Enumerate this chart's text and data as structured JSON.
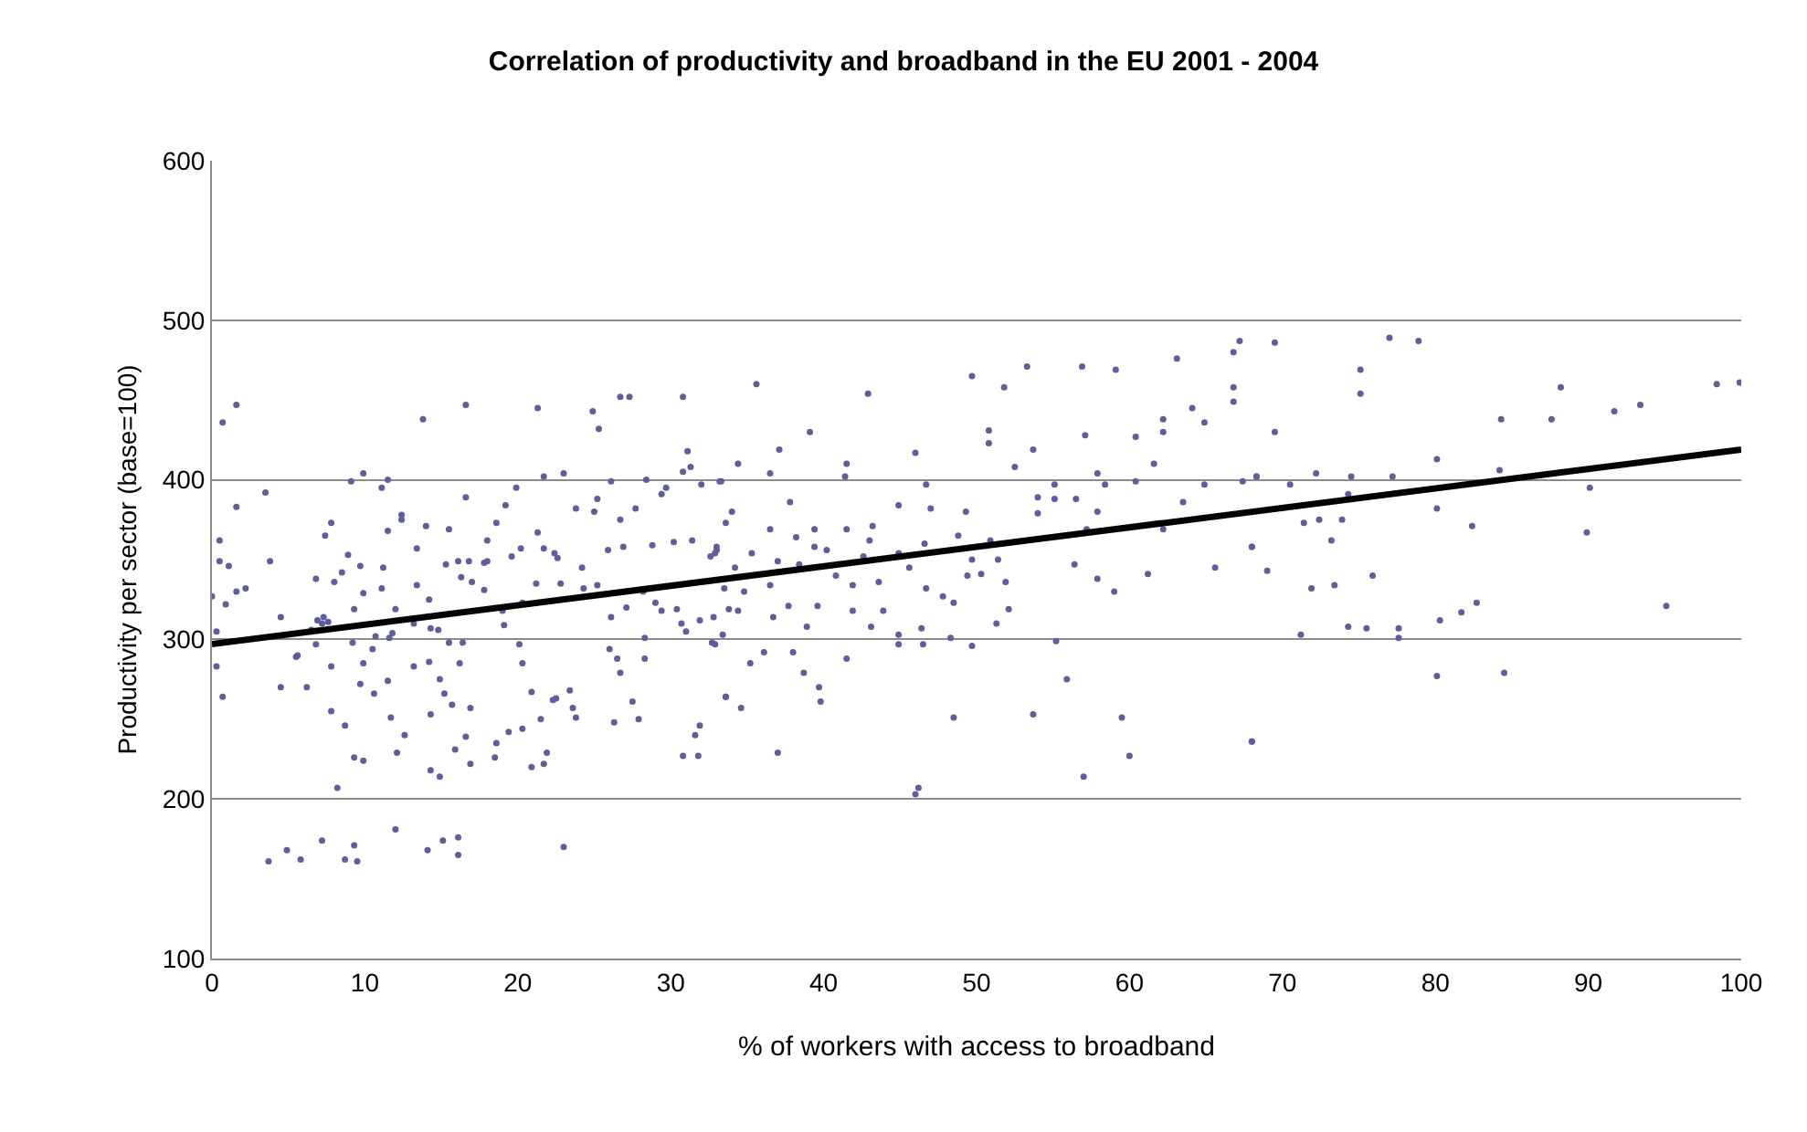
{
  "chart_data": {
    "type": "scatter",
    "title": "Correlation of productivity and broadband in the EU 2001 - 2004",
    "xlabel": "% of workers with access to broadband",
    "ylabel": "Productivity per sector (base=100)",
    "xlim": [
      0,
      100
    ],
    "xticks": [
      0,
      10,
      20,
      30,
      40,
      50,
      60,
      70,
      80,
      90,
      100
    ],
    "ylim": [
      100,
      600
    ],
    "yticks": [
      100,
      200,
      300,
      400,
      500,
      600
    ],
    "grid": "y",
    "marker": "circle",
    "series": [
      {
        "color": "#5e5e9c",
        "x": [
          69.5,
          77.0,
          78.9,
          75.1,
          75.1,
          69.5,
          84.3,
          87.6,
          88.2,
          91.7,
          93.4,
          98.4,
          99.9,
          68.3,
          67.4,
          72.2,
          74.5,
          77.2,
          80.1,
          84.2,
          70.5,
          74.3,
          80.1,
          82.4,
          89.9,
          90.1,
          71.4,
          72.4,
          73.9,
          73.2,
          68.0,
          69.0,
          71.9,
          73.4,
          75.9,
          82.7,
          81.7,
          80.3,
          74.3,
          75.5,
          77.6,
          77.6,
          71.2,
          95.1,
          80.1,
          84.5,
          68.0,
          35.6,
          42.9,
          49.7,
          53.3,
          56.9,
          59.1,
          63.1,
          67.2,
          66.8,
          66.8,
          66.8,
          64.1,
          64.9,
          62.2,
          62.2,
          60.4,
          57.1,
          53.7,
          52.5,
          50.8,
          50.8,
          51.8,
          46.0,
          39.1,
          37.1,
          34.4,
          36.5,
          41.5,
          41.4,
          33.3,
          46.7,
          55.1,
          57.9,
          58.4,
          60.4,
          61.6,
          64.9,
          68.3,
          54.0,
          55.1,
          56.5,
          63.5,
          54.0,
          57.9,
          49.3,
          47.0,
          44.9,
          37.8,
          34.0,
          33.6,
          36.5,
          39.4,
          41.5,
          43.2,
          48.8,
          57.2,
          62.2,
          38.2,
          43.0,
          46.6,
          50.9,
          33.0,
          35.3,
          39.4,
          40.2,
          44.9,
          42.6,
          38.4,
          34.2,
          37.0,
          49.7,
          51.4,
          56.4,
          45.6,
          40.8,
          43.6,
          41.9,
          49.4,
          50.3,
          51.9,
          57.9,
          61.2,
          65.6,
          59.0,
          32.9,
          33.5,
          34.8,
          36.5,
          46.7,
          47.8,
          48.5,
          52.1,
          51.3,
          33.8,
          34.4,
          36.7,
          37.7,
          39.6,
          41.9,
          43.9,
          38.9,
          43.1,
          44.9,
          44.9,
          46.4,
          46.5,
          48.3,
          49.7,
          55.2,
          32.7,
          33.4,
          35.2,
          36.1,
          38.0,
          38.7,
          41.5,
          39.7,
          39.8,
          33.6,
          34.6,
          37.0,
          48.5,
          53.7,
          55.9,
          59.5,
          60.0,
          57.0,
          46.0,
          46.2,
          68.0,
          68.0,
          0.7,
          1.6,
          1.6,
          0.5,
          0.0,
          0.3,
          0.3,
          0.7,
          0.5,
          1.1,
          0.9,
          2.2,
          1.6,
          3.5,
          3.8,
          4.5,
          4.5,
          6.2,
          5.6,
          3.7,
          4.9,
          5.8,
          7.2,
          8.7,
          9.3,
          9.5,
          12.0,
          14.1,
          15.1,
          16.1,
          16.1,
          23.0,
          8.2,
          7.8,
          8.7,
          9.3,
          9.9,
          9.7,
          7.8,
          11.7,
          12.1,
          12.6,
          14.3,
          14.9,
          14.3,
          15.2,
          15.7,
          14.9,
          15.9,
          16.9,
          16.6,
          16.9,
          18.5,
          18.6,
          19.4,
          20.3,
          20.9,
          21.7,
          21.9,
          21.5,
          22.5,
          23.6,
          23.8,
          26.3,
          27.9,
          27.5,
          30.8,
          31.8,
          31.9,
          31.6,
          33.6,
          26.7,
          27.3,
          30.8,
          25.3,
          24.9,
          21.3,
          16.6,
          13.8,
          31.1,
          31.3,
          30.8,
          9.1,
          9.9,
          11.5,
          11.1,
          16.6,
          19.9,
          21.7,
          23.0,
          26.1,
          28.4,
          29.4,
          29.7,
          32.0,
          33.2,
          12.4,
          12.4,
          14.0,
          15.5,
          18.0,
          19.2,
          18.6,
          21.3,
          23.8,
          25.0,
          25.2,
          26.7,
          27.7,
          7.8,
          7.4,
          6.8,
          7.3,
          7.2,
          7.6,
          8.9,
          9.7,
          9.9,
          9.3,
          9.2,
          9.9,
          10.5,
          10.6,
          11.5,
          11.6,
          11.1,
          11.2,
          11.5,
          13.4,
          13.2,
          13.2,
          13.4,
          14.2,
          14.3,
          14.2,
          15.5,
          16.2,
          16.4,
          15.3,
          16.1,
          16.8,
          17.0,
          17.8,
          18.0,
          19.0,
          19.1,
          20.3,
          20.1,
          20.3,
          20.9,
          22.3,
          23.4,
          21.2,
          22.8,
          21.7,
          22.6,
          24.2,
          24.3,
          25.2,
          26.1,
          26.0,
          26.5,
          26.7,
          27.1,
          28.2,
          28.3,
          28.3,
          29.0,
          29.4,
          30.4,
          30.7,
          31.0,
          31.9,
          32.8,
          32.9,
          31.4,
          32.6,
          33.0,
          30.2,
          28.8,
          26.9,
          25.9,
          22.4,
          20.2,
          19.6,
          17.8,
          16.3,
          15.5,
          14.8,
          12.0,
          11.8,
          10.7,
          8.5,
          8.0,
          6.9,
          6.5,
          5.5,
          6.8
        ],
        "values": [
          486,
          489,
          487,
          469,
          454,
          430,
          438,
          438,
          458,
          443,
          447,
          460,
          461,
          402,
          399,
          404,
          402,
          402,
          413,
          406,
          397,
          391,
          382,
          371,
          367,
          395,
          373,
          375,
          375,
          362,
          358,
          343,
          332,
          334,
          340,
          323,
          317,
          312,
          308,
          307,
          307,
          301,
          303,
          321,
          277,
          279,
          236,
          460,
          454,
          465,
          471,
          471,
          469,
          476,
          487,
          480,
          458,
          449,
          445,
          436,
          438,
          430,
          427,
          428,
          419,
          408,
          431,
          423,
          458,
          417,
          430,
          419,
          410,
          404,
          410,
          402,
          399,
          397,
          397,
          404,
          397,
          399,
          410,
          397,
          402,
          389,
          388,
          388,
          386,
          379,
          380,
          380,
          382,
          384,
          386,
          380,
          373,
          369,
          369,
          369,
          371,
          365,
          369,
          369,
          364,
          362,
          360,
          362,
          356,
          354,
          358,
          356,
          354,
          352,
          347,
          345,
          349,
          350,
          350,
          347,
          345,
          340,
          336,
          334,
          340,
          341,
          336,
          338,
          341,
          345,
          330,
          354,
          332,
          330,
          334,
          332,
          327,
          323,
          319,
          310,
          319,
          318,
          314,
          321,
          321,
          318,
          318,
          308,
          308,
          303,
          297,
          307,
          297,
          301,
          296,
          299,
          298,
          303,
          285,
          292,
          292,
          279,
          288,
          270,
          261,
          264,
          257,
          229,
          251,
          253,
          275,
          251,
          227,
          214,
          203,
          207,
          236,
          358,
          436,
          447,
          383,
          362,
          327,
          305,
          283,
          264,
          349,
          346,
          322,
          332,
          330,
          392,
          349,
          314,
          270,
          270,
          290,
          161,
          168,
          162,
          174,
          162,
          171,
          161,
          181,
          168,
          174,
          176,
          165,
          170,
          207,
          255,
          246,
          226,
          224,
          272,
          283,
          251,
          229,
          240,
          218,
          214,
          253,
          266,
          259,
          275,
          231,
          222,
          239,
          257,
          226,
          235,
          242,
          244,
          220,
          222,
          229,
          250,
          263,
          257,
          251,
          248,
          250,
          261,
          227,
          227,
          246,
          240,
          264,
          452,
          452,
          452,
          432,
          443,
          445,
          447,
          438,
          418,
          408,
          405,
          399,
          404,
          400,
          395,
          389,
          395,
          402,
          404,
          399,
          400,
          391,
          395,
          397,
          399,
          378,
          375,
          371,
          369,
          362,
          384,
          373,
          367,
          382,
          380,
          388,
          375,
          382,
          373,
          365,
          338,
          314,
          310,
          311,
          353,
          346,
          329,
          319,
          298,
          285,
          294,
          266,
          274,
          301,
          332,
          345,
          368,
          334,
          310,
          283,
          357,
          325,
          307,
          286,
          298,
          285,
          298,
          347,
          349,
          349,
          336,
          331,
          349,
          318,
          309,
          323,
          297,
          285,
          267,
          262,
          268,
          335,
          335,
          357,
          351,
          345,
          332,
          334,
          314,
          294,
          288,
          279,
          320,
          330,
          301,
          288,
          323,
          318,
          319,
          310,
          305,
          312,
          314,
          297,
          362,
          352,
          358,
          361,
          359,
          358,
          356,
          354,
          357,
          352,
          348,
          339,
          316,
          306,
          319,
          304,
          302,
          342,
          336,
          312,
          306,
          289,
          297
        ]
      },
      {
        "type": "line",
        "color": "#000000",
        "marker": "none",
        "line_style": "solid",
        "x": [
          0,
          100
        ],
        "values": [
          297,
          419
        ]
      }
    ]
  }
}
